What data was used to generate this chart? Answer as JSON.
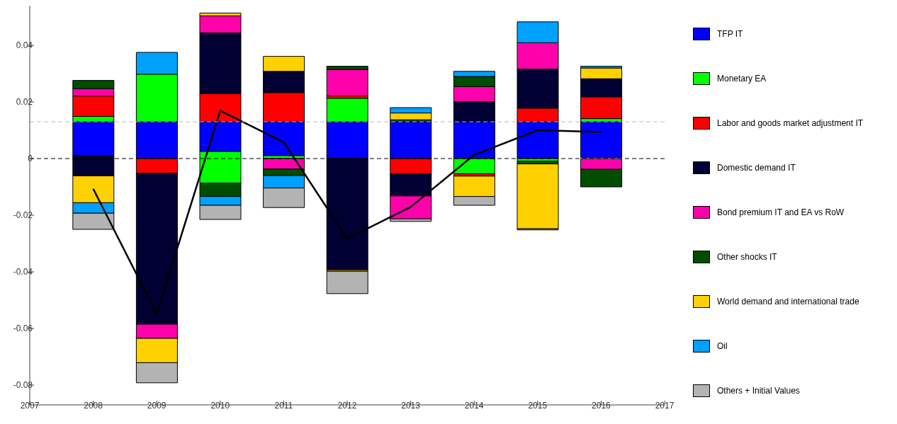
{
  "chart_data": {
    "type": "bar",
    "x": [
      2008,
      2009,
      2010,
      2011,
      2012,
      2013,
      2014,
      2015,
      2016
    ],
    "series": [
      {
        "name": "TFP IT",
        "color": "#0000ff",
        "base": [
          0.001,
          0,
          0.0025,
          0.001,
          0,
          0,
          0,
          0,
          0.0004
        ],
        "values": [
          0.012,
          0.013,
          0.0105,
          0.012,
          0.013,
          0.013,
          0.013,
          0.013,
          0.0126
        ]
      },
      {
        "name": "Monetary EA",
        "color": "#00ff00",
        "base": [
          0.013,
          0.013,
          -0.0087,
          0,
          0.013,
          null,
          -0.0054,
          -0.0009,
          0.013
        ],
        "values": [
          0.0019,
          0.0168,
          0.0112,
          0.001,
          0.0083,
          null,
          0.0054,
          0.0009,
          0.0011
        ]
      },
      {
        "name": "Labor and goods market adjustment IT",
        "color": "#ff0000",
        "base": [
          0.0149,
          -0.0052,
          0.013,
          0.013,
          0.0213,
          -0.0054,
          -0.0062,
          0.013,
          0.0141
        ],
        "values": [
          0.0072,
          0.0052,
          0.0099,
          0.0103,
          0.0009,
          0.0054,
          0.0008,
          0.0048,
          0.0077
        ]
      },
      {
        "name": "Domestic demand IT",
        "color": "#000033",
        "base": [
          -0.0061,
          -0.0585,
          0.0229,
          0.0233,
          -0.0393,
          -0.0132,
          0.013,
          0.0178,
          0.0218
        ],
        "values": [
          0.0071,
          0.0533,
          0.0215,
          0.0075,
          0.0393,
          0.0078,
          0.0071,
          0.0138,
          0.0064
        ]
      },
      {
        "name": "Bond premium IT and EA vs RoW",
        "color": "#ff00aa",
        "base": [
          0.0221,
          -0.0635,
          0.0444,
          -0.0037,
          0.0222,
          -0.0213,
          0.0201,
          0.0316,
          -0.0038
        ],
        "values": [
          0.0026,
          0.005,
          0.006,
          0.0037,
          0.0093,
          0.0081,
          0.0053,
          0.0093,
          0.0038
        ]
      },
      {
        "name": "Other shocks IT",
        "color": "#004d00",
        "base": [
          0.0247,
          null,
          -0.0134,
          -0.006,
          0.0315,
          0.013,
          0.0254,
          -0.0019,
          -0.01
        ],
        "values": [
          0.0029,
          null,
          0.0047,
          0.0023,
          0.0011,
          0.0007,
          0.0036,
          0.001,
          0.0062
        ]
      },
      {
        "name": "World demand and international trade",
        "color": "#ffd100",
        "base": [
          -0.0156,
          -0.0721,
          0.0504,
          0.0308,
          -0.0398,
          0.0137,
          -0.0134,
          -0.0248,
          0.0282
        ],
        "values": [
          0.0095,
          0.0086,
          0.001,
          0.0053,
          0.0005,
          0.0024,
          0.0072,
          0.0229,
          0.0038
        ]
      },
      {
        "name": "Oil",
        "color": "#00a0ff",
        "base": [
          -0.0193,
          0.0298,
          -0.0165,
          -0.0104,
          null,
          0.0161,
          0.029,
          0.0409,
          0.032
        ],
        "values": [
          0.0037,
          0.0077,
          0.0031,
          0.0044,
          null,
          0.0019,
          0.0018,
          0.0074,
          0.0006
        ]
      },
      {
        "name": "Others + Initial Values",
        "color": "#b3b3b3",
        "base": [
          -0.025,
          -0.0792,
          -0.0215,
          -0.0173,
          -0.0477,
          -0.0222,
          -0.0165,
          -0.0252,
          null
        ],
        "values": [
          0.0057,
          0.0071,
          0.005,
          0.0069,
          0.0079,
          0.0009,
          0.0031,
          0.0004,
          null
        ]
      },
      {
        "type": "line",
        "color": "#000000",
        "values": [
          -0.0107,
          -0.0549,
          0.0169,
          0.0058,
          -0.0283,
          -0.0171,
          0.0013,
          0.01,
          0.0094
        ]
      }
    ],
    "xlim": [
      2007,
      2017
    ],
    "xticks": [
      2007,
      2008,
      2009,
      2010,
      2011,
      2012,
      2013,
      2014,
      2015,
      2016,
      2017
    ],
    "ylim": [
      -0.087,
      0.054
    ],
    "yticks": [
      -0.08,
      -0.06,
      -0.04,
      -0.02,
      0,
      0.02,
      0.04
    ],
    "ref_lines": [
      {
        "axis": "y",
        "value": 0,
        "color": "#000000",
        "line_style": "dashed"
      },
      {
        "axis": "y",
        "value": 0.013,
        "color": "#bbbbbb",
        "line_style": "dashed"
      }
    ],
    "legend": "right",
    "grid": false
  }
}
